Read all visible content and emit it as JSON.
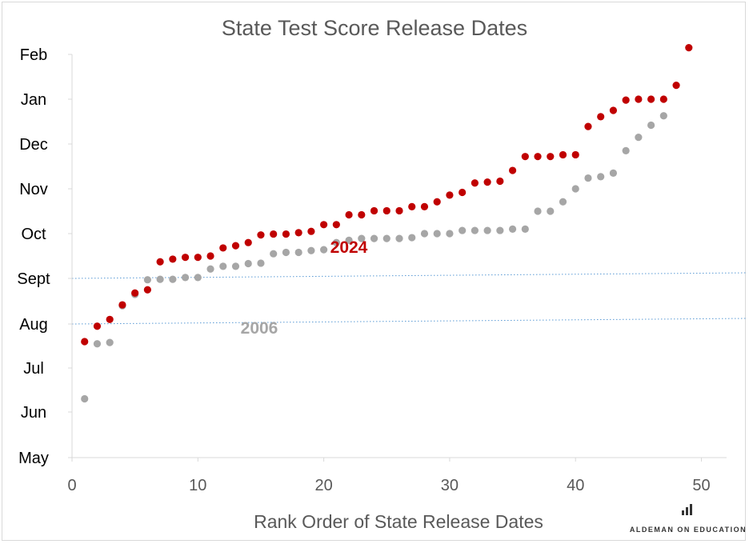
{
  "chart_data": {
    "type": "scatter",
    "title": "State Test Score Release Dates",
    "xlabel": "Rank Order of State Release Dates",
    "ylabel": "",
    "xlim": [
      0,
      52
    ],
    "x_ticks": [
      "0",
      "10",
      "20",
      "30",
      "40",
      "50"
    ],
    "x_tick_values": [
      0,
      10,
      20,
      30,
      40,
      50
    ],
    "y_ticks": [
      "May",
      "Jun",
      "Jul",
      "Aug",
      "Sept",
      "Oct",
      "Nov",
      "Dec",
      "Jan",
      "Feb"
    ],
    "grid": false,
    "reference_lines": [
      "Aug",
      "Sept"
    ],
    "series": [
      {
        "name": "2006",
        "color": "#a6a6a6",
        "x": [
          1,
          2,
          3,
          4,
          5,
          6,
          7,
          8,
          9,
          10,
          11,
          12,
          13,
          14,
          15,
          16,
          17,
          18,
          19,
          20,
          21,
          22,
          23,
          24,
          25,
          26,
          27,
          28,
          29,
          30,
          31,
          32,
          33,
          34,
          35,
          36,
          37,
          38,
          39,
          40,
          41,
          42,
          43,
          44,
          45,
          46,
          47
        ],
        "y": [
          1.3,
          2.55,
          2.58,
          3.4,
          3.65,
          3.97,
          3.98,
          3.98,
          4.02,
          4.02,
          4.21,
          4.27,
          4.27,
          4.33,
          4.34,
          4.55,
          4.58,
          4.58,
          4.62,
          4.64,
          4.8,
          4.85,
          4.89,
          4.89,
          4.89,
          4.89,
          4.91,
          5.0,
          5.0,
          5.0,
          5.07,
          5.07,
          5.07,
          5.07,
          5.1,
          5.1,
          5.5,
          5.5,
          5.71,
          6.0,
          6.24,
          6.27,
          6.35,
          6.85,
          7.15,
          7.42,
          7.63
        ]
      },
      {
        "name": "2024",
        "color": "#c00000",
        "x": [
          1,
          2,
          3,
          4,
          5,
          6,
          7,
          8,
          9,
          10,
          11,
          12,
          13,
          14,
          15,
          16,
          17,
          18,
          19,
          20,
          21,
          22,
          23,
          24,
          25,
          26,
          27,
          28,
          29,
          30,
          31,
          32,
          33,
          34,
          35,
          36,
          37,
          38,
          39,
          40,
          41,
          42,
          43,
          44,
          45,
          46,
          47,
          48,
          49
        ],
        "y": [
          2.6,
          2.95,
          3.1,
          3.42,
          3.68,
          3.75,
          4.37,
          4.43,
          4.47,
          4.47,
          4.5,
          4.68,
          4.73,
          4.8,
          4.97,
          4.99,
          4.99,
          5.02,
          5.05,
          5.2,
          5.2,
          5.42,
          5.42,
          5.51,
          5.51,
          5.51,
          5.6,
          5.6,
          5.71,
          5.86,
          5.92,
          6.13,
          6.15,
          6.17,
          6.41,
          6.72,
          6.72,
          6.72,
          6.76,
          6.76,
          7.39,
          7.61,
          7.75,
          7.98,
          8.0,
          8.0,
          8.0,
          8.31,
          9.15
        ]
      }
    ],
    "annotations": [
      {
        "text": "2024",
        "color": "#c00000"
      },
      {
        "text": "2006",
        "color": "#a6a6a6"
      }
    ]
  },
  "branding": {
    "text": "ALDEMAN ON EDUCATION"
  }
}
